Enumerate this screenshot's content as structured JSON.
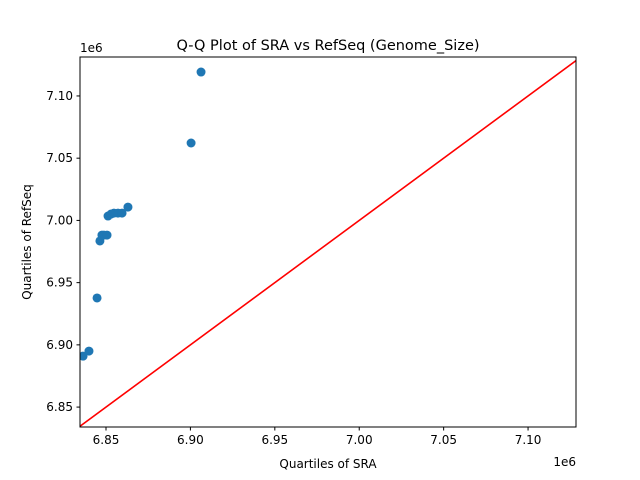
{
  "chart_data": {
    "type": "scatter",
    "title": "Q-Q Plot of SRA vs RefSeq (Genome_Size)",
    "xlabel": "Quartiles of SRA",
    "ylabel": "Quartiles of RefSeq",
    "x_offset_label": "1e6",
    "y_offset_label": "1e6",
    "xlim": [
      6.8346,
      7.1284
    ],
    "ylim": [
      6.834,
      7.1313
    ],
    "xticks": [
      6.85,
      6.9,
      6.95,
      7.0,
      7.05,
      7.1
    ],
    "yticks": [
      6.85,
      6.9,
      6.95,
      7.0,
      7.05,
      7.1
    ],
    "xtick_labels": [
      "6.85",
      "6.90",
      "6.95",
      "7.00",
      "7.05",
      "7.10"
    ],
    "ytick_labels": [
      "6.85",
      "6.90",
      "6.95",
      "7.00",
      "7.05",
      "7.10"
    ],
    "grid": false,
    "point_color": "#1f77b4",
    "reference_line": {
      "type": "y=x",
      "color": "#ff0000"
    },
    "points": [
      {
        "x": 6.8364,
        "y": 6.8909
      },
      {
        "x": 6.8399,
        "y": 6.895
      },
      {
        "x": 6.8447,
        "y": 6.9377
      },
      {
        "x": 6.8464,
        "y": 6.9835
      },
      {
        "x": 6.8476,
        "y": 6.9882
      },
      {
        "x": 6.8488,
        "y": 6.9882
      },
      {
        "x": 6.8506,
        "y": 6.9882
      },
      {
        "x": 6.8512,
        "y": 7.0035
      },
      {
        "x": 6.853,
        "y": 7.0051
      },
      {
        "x": 6.8547,
        "y": 7.0059
      },
      {
        "x": 6.8571,
        "y": 7.0059
      },
      {
        "x": 6.8595,
        "y": 7.0059
      },
      {
        "x": 6.863,
        "y": 7.0107
      },
      {
        "x": 6.9004,
        "y": 7.0622
      },
      {
        "x": 6.9063,
        "y": 7.1192
      }
    ]
  }
}
